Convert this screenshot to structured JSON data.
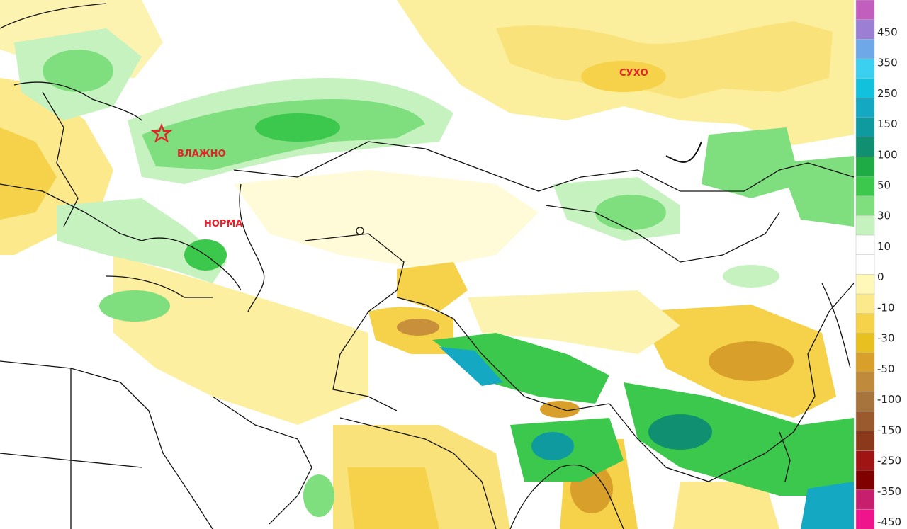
{
  "map": {
    "annotations": [
      {
        "key": "wet",
        "text": "ВЛАЖНО"
      },
      {
        "key": "normal",
        "text": "НОРМА"
      },
      {
        "key": "dry",
        "text": "СУХО"
      }
    ],
    "marker_icon": "star-icon",
    "marker_color": "#e8202a"
  },
  "colorbar": {
    "labels": [
      "450",
      "350",
      "250",
      "150",
      "100",
      "50",
      "30",
      "10",
      "0",
      "-10",
      "-30",
      "-50",
      "-100",
      "-150",
      "-250",
      "-350",
      "-450"
    ],
    "colors": [
      "#c25fbe",
      "#9b7fd4",
      "#6fa8e8",
      "#3cd0f0",
      "#12c2dc",
      "#14a8c2",
      "#0f9aa0",
      "#109070",
      "#1eaa44",
      "#3cc84c",
      "#7fdf7f",
      "#c6f2c0",
      "#ffffff",
      "#ffffff",
      "#fff8b8",
      "#fbe98c",
      "#f5d24a",
      "#e8c020",
      "#d8a02a",
      "#bf8a3c",
      "#a8743e",
      "#9a5a2e",
      "#8a3a1a",
      "#a01414",
      "#800000",
      "#c81e6e",
      "#f0148c"
    ]
  }
}
